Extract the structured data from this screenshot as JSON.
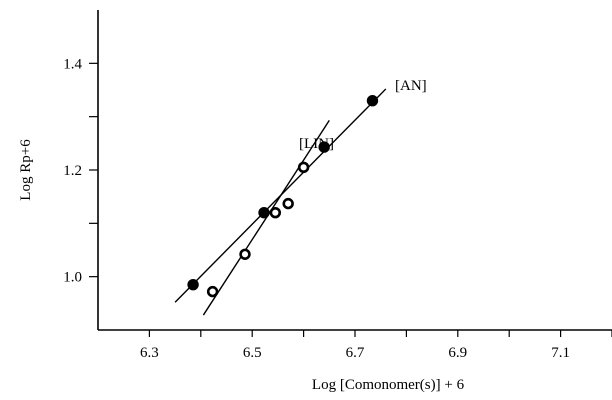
{
  "chart_data": {
    "type": "scatter",
    "xlabel": "Log [Comonomer(s)] + 6",
    "ylabel": "Log Rp+6",
    "xlim": [
      6.2,
      7.2
    ],
    "ylim": [
      0.9,
      1.5
    ],
    "x_ticks": [
      6.3,
      6.5,
      6.7,
      6.9,
      7.1
    ],
    "x_tick_labels": [
      "6.3",
      "6.5",
      "6.7",
      "6.9",
      "7.1"
    ],
    "y_ticks": [
      1.0,
      1.2,
      1.4
    ],
    "y_tick_labels": [
      "1.0",
      "1.2",
      "1.4"
    ],
    "grid": false,
    "series": [
      {
        "name": "[AN]",
        "marker": "filled-circle",
        "x": [
          6.385,
          6.523,
          6.64,
          6.734
        ],
        "y": [
          0.985,
          1.12,
          1.243,
          1.33
        ],
        "fit_line": {
          "x": [
            6.35,
            6.76
          ],
          "y": [
            0.952,
            1.352
          ]
        }
      },
      {
        "name": "[LIN]",
        "marker": "open-circle",
        "x": [
          6.423,
          6.486,
          6.545,
          6.57,
          6.6
        ],
        "y": [
          0.972,
          1.042,
          1.12,
          1.137,
          1.205
        ],
        "fit_line": {
          "x": [
            6.405,
            6.65
          ],
          "y": [
            0.928,
            1.293
          ]
        }
      }
    ]
  }
}
